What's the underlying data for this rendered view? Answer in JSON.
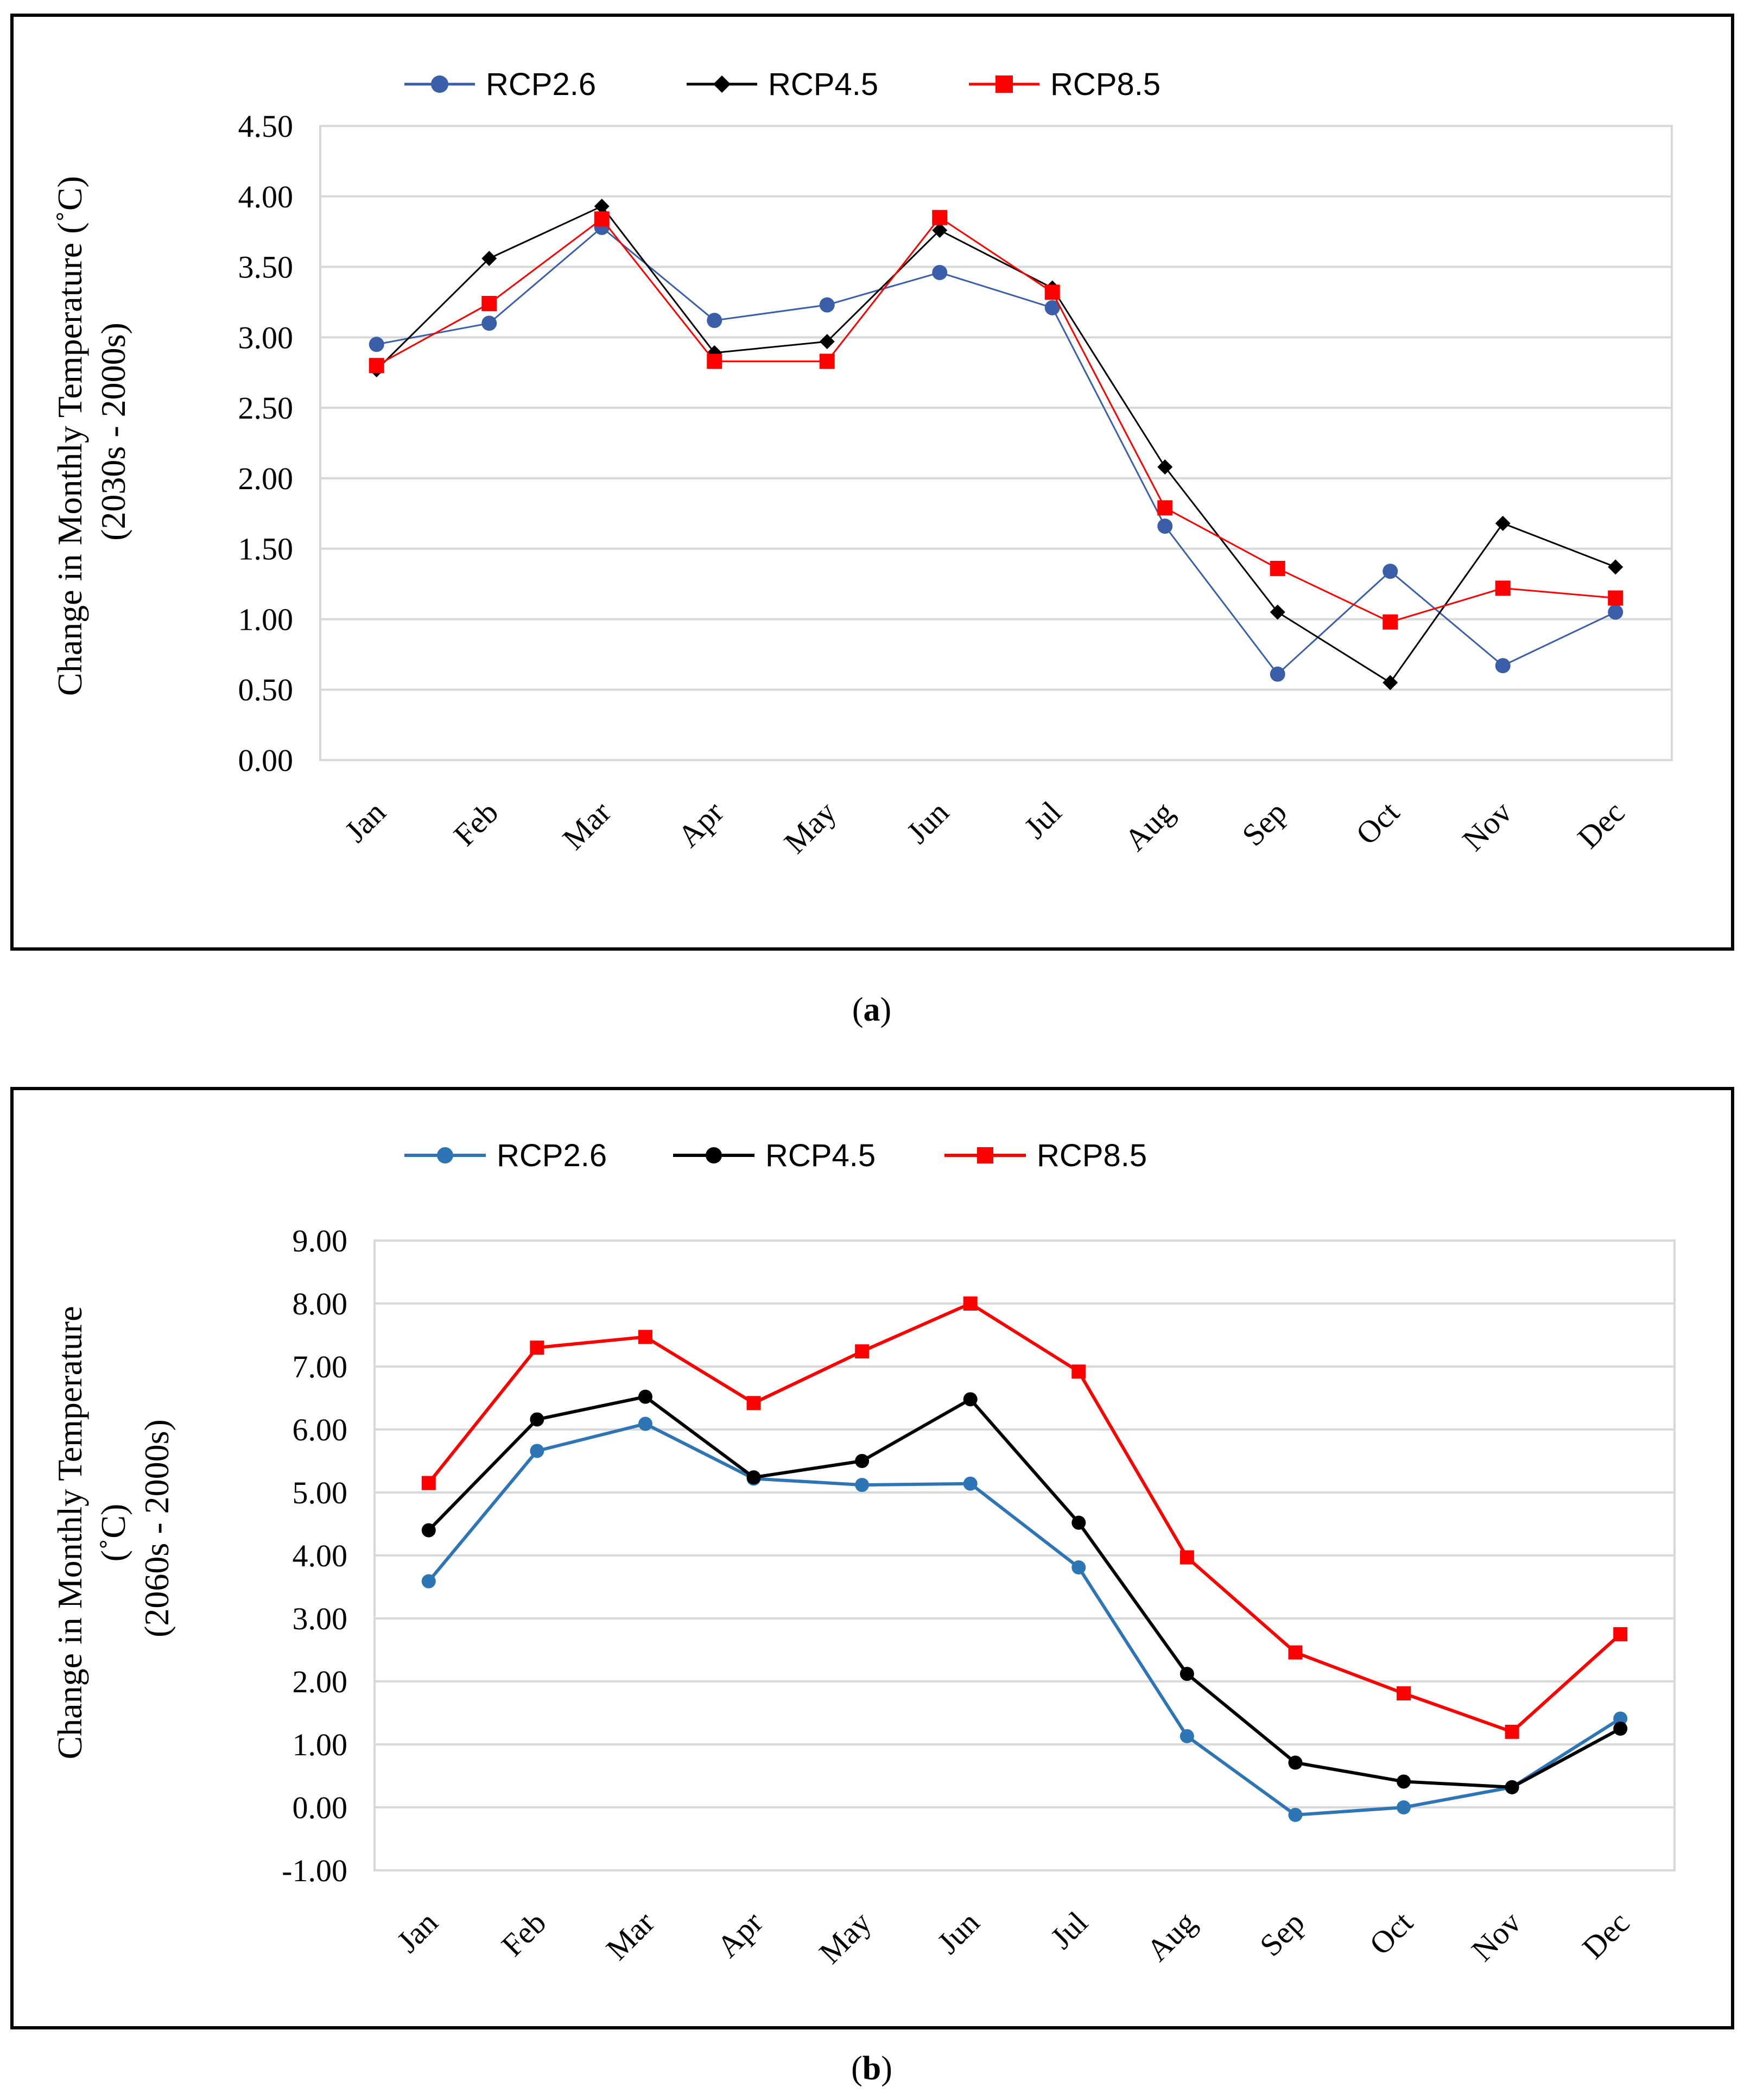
{
  "chart_data": [
    {
      "type": "line",
      "caption": "a",
      "ylabel": [
        "Change in Monthly Temperature (˚C)",
        "(2030s - 2000s)"
      ],
      "ylim": [
        0,
        4.5
      ],
      "ytick_labels": [
        "4.50",
        "4.00",
        "3.50",
        "3.00",
        "2.50",
        "2.00",
        "1.50",
        "1.00",
        "0.50",
        "0.00"
      ],
      "categories": [
        "Jan",
        "Feb",
        "Mar",
        "Apr",
        "May",
        "Jun",
        "Jul",
        "Aug",
        "Sep",
        "Oct",
        "Nov",
        "Dec"
      ],
      "grid": true,
      "legend_position": "top",
      "series": [
        {
          "name": "RCP2.6",
          "color": "#3a5fa8",
          "marker": "circle",
          "values": [
            2.95,
            3.1,
            3.78,
            3.12,
            3.23,
            3.46,
            3.21,
            1.66,
            0.61,
            1.34,
            0.67,
            1.05
          ]
        },
        {
          "name": "RCP4.5",
          "color": "#000000",
          "marker": "diamond",
          "values": [
            2.77,
            3.56,
            3.93,
            2.89,
            2.97,
            3.76,
            3.35,
            2.08,
            1.05,
            0.55,
            1.68,
            1.37
          ]
        },
        {
          "name": "RCP8.5",
          "color": "#ff0000",
          "marker": "square",
          "values": [
            2.8,
            3.24,
            3.84,
            2.83,
            2.83,
            3.85,
            3.32,
            1.79,
            1.36,
            0.98,
            1.22,
            1.15
          ]
        }
      ]
    },
    {
      "type": "line",
      "caption": "b",
      "ylabel": [
        "Change  in  Monthly Temperature",
        "(˚C)",
        "(2060s - 2000s)"
      ],
      "ylim": [
        -1,
        9
      ],
      "ytick_labels": [
        "9.00",
        "8.00",
        "7.00",
        "6.00",
        "5.00",
        "4.00",
        "3.00",
        "2.00",
        "1.00",
        "0.00",
        "-1.00"
      ],
      "categories": [
        "Jan",
        "Feb",
        "Mar",
        "Apr",
        "May",
        "Jun",
        "Jul",
        "Aug",
        "Sep",
        "Oct",
        "Nov",
        "Dec"
      ],
      "grid": true,
      "legend_position": "top",
      "series": [
        {
          "name": "RCP2.6",
          "color": "#2e75b6",
          "marker": "circle",
          "values": [
            3.59,
            5.66,
            6.09,
            5.22,
            5.12,
            5.14,
            3.81,
            1.13,
            -0.12,
            0.0,
            0.32,
            1.41
          ]
        },
        {
          "name": "RCP4.5",
          "color": "#000000",
          "marker": "circle",
          "values": [
            4.4,
            6.16,
            6.52,
            5.24,
            5.5,
            6.48,
            4.52,
            2.12,
            0.71,
            0.41,
            0.32,
            1.25
          ]
        },
        {
          "name": "RCP8.5",
          "color": "#ff0000",
          "marker": "square",
          "values": [
            5.15,
            7.3,
            7.47,
            6.42,
            7.24,
            8.0,
            6.92,
            3.97,
            2.46,
            1.81,
            1.2,
            2.75
          ]
        }
      ]
    }
  ]
}
